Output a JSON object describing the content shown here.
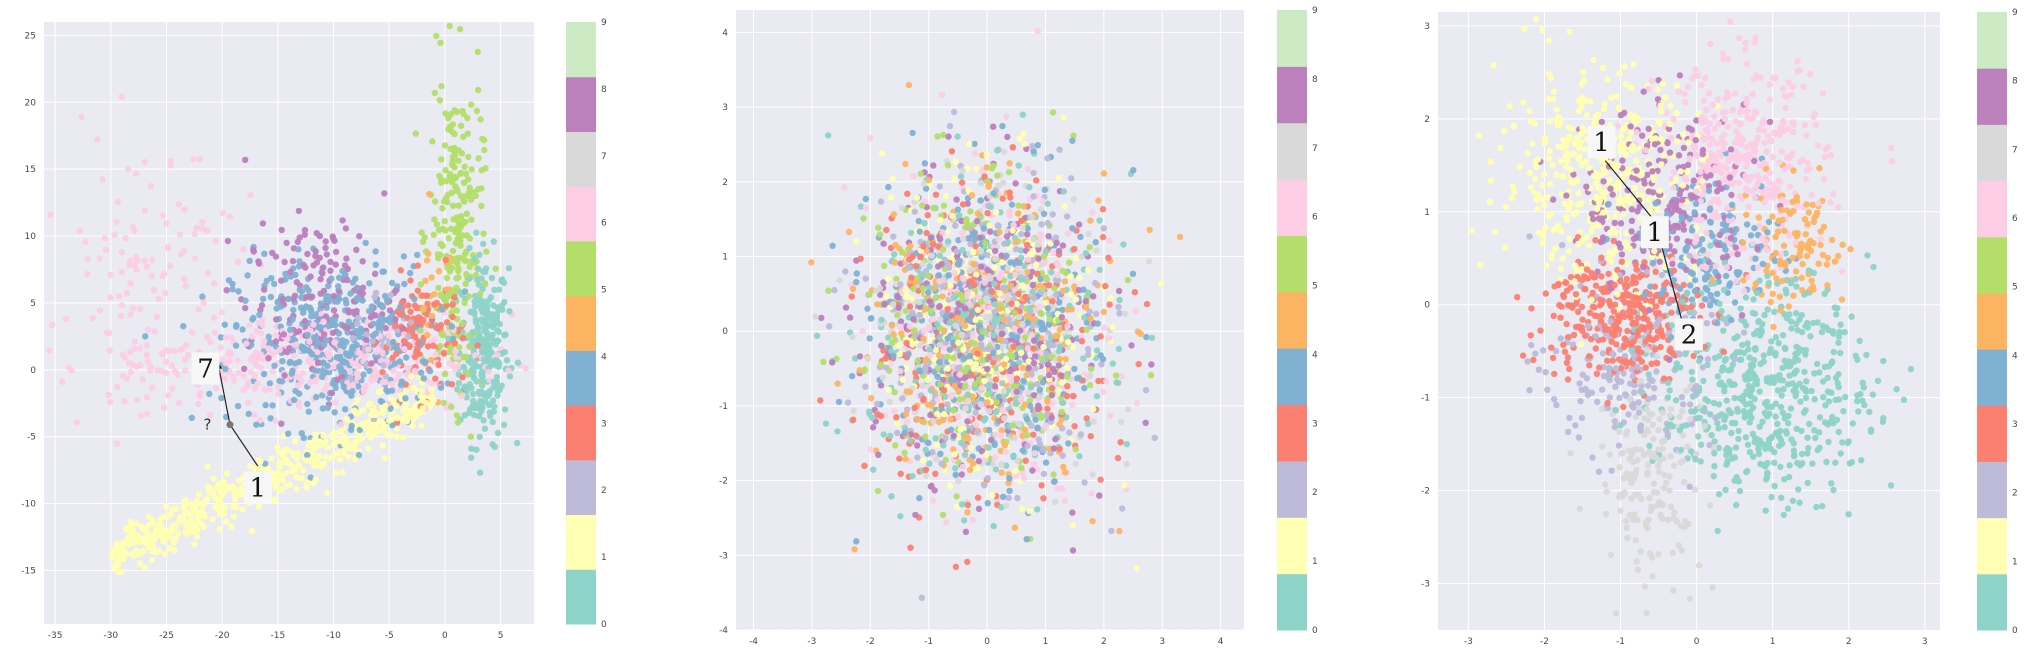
{
  "palette": [
    "#8dd3c7",
    "#ffffb3",
    "#bebada",
    "#fb8072",
    "#80b1d3",
    "#fdb462",
    "#b3de69",
    "#fccde5",
    "#d9d9d9",
    "#bc80bd",
    "#ccebc5",
    "#ffed6f"
  ],
  "class_colors": [
    "#8dd3c7",
    "#ffffb3",
    "#bebada",
    "#fb8072",
    "#80b1d3",
    "#fdb462",
    "#b3de69",
    "#fccde5",
    "#d9d9d9",
    "#bc80bd",
    "#ffed6f"
  ],
  "plot_background": "#eaeaf2",
  "colorbar_labels": [
    "0",
    "1",
    "2",
    "3",
    "4",
    "5",
    "6",
    "7",
    "8",
    "9"
  ],
  "chart_data": [
    {
      "type": "scatter",
      "title": "",
      "xlabel": "",
      "ylabel": "",
      "xlim": [
        -36,
        8
      ],
      "ylim": [
        -19,
        26
      ],
      "xticks": [
        "-35",
        "-30",
        "-25",
        "-20",
        "-15",
        "-10",
        "-5",
        "0",
        "5"
      ],
      "yticks": [
        "-15",
        "-10",
        "-5",
        "0",
        "5",
        "10",
        "15",
        "20",
        "25"
      ],
      "grid": true,
      "colorbar": {
        "ticks": [
          "0",
          "1",
          "2",
          "3",
          "4",
          "5",
          "6",
          "7",
          "8",
          "9"
        ],
        "colors_by_class": true
      },
      "clusters": [
        {
          "label": "0",
          "center": [
            3.5,
            1.5
          ],
          "spread": [
            1.1,
            3.5
          ],
          "count": 260,
          "shape": "vertical"
        },
        {
          "label": "1",
          "from": [
            -30,
            -14
          ],
          "to": [
            -1,
            -2
          ],
          "width": 1.8,
          "count": 520,
          "shape": "line"
        },
        {
          "label": "2",
          "center": [
            -6,
            2
          ],
          "spread": [
            2.0,
            2.0
          ],
          "count": 40
        },
        {
          "label": "4",
          "center": [
            -10,
            2
          ],
          "spread": [
            4.5,
            3.2
          ],
          "count": 420
        },
        {
          "label": "3",
          "center": [
            -2,
            2.5
          ],
          "spread": [
            1.8,
            2.2
          ],
          "count": 120
        },
        {
          "label": "5",
          "center": [
            -1,
            5
          ],
          "spread": [
            1.0,
            3.0
          ],
          "count": 30
        },
        {
          "label": "6",
          "center": [
            1,
            10
          ],
          "spread": [
            1.2,
            6.0
          ],
          "count": 240,
          "shape": "vertical"
        },
        {
          "label": "7",
          "center": [
            -12,
            0.5
          ],
          "spread": [
            9.0,
            1.8
          ],
          "count": 360
        },
        {
          "label": "7",
          "center": [
            -27,
            8
          ],
          "spread": [
            4.0,
            5.0
          ],
          "count": 110
        },
        {
          "label": "9",
          "center": [
            -11,
            5
          ],
          "spread": [
            3.5,
            3.0
          ],
          "count": 180
        }
      ],
      "annotations": [
        {
          "text": "7",
          "x": -21.5,
          "y": 0.1,
          "kind": "digit"
        },
        {
          "text": "?",
          "x": -20.6,
          "y": -4.1,
          "kind": "question"
        },
        {
          "text": "1",
          "x": -16.8,
          "y": -8.8,
          "kind": "digit"
        }
      ],
      "path": [
        [
          -16.8,
          -7.2
        ],
        [
          -19.3,
          -4.1
        ],
        [
          -20.4,
          0.6
        ]
      ]
    },
    {
      "type": "scatter",
      "title": "",
      "xlabel": "",
      "ylabel": "",
      "xlim": [
        -4.3,
        4.4
      ],
      "ylim": [
        -4,
        4.3
      ],
      "xticks": [
        "-4",
        "-3",
        "-2",
        "-1",
        "0",
        "1",
        "2",
        "3",
        "4"
      ],
      "yticks": [
        "-4",
        "-3",
        "-2",
        "-1",
        "0",
        "1",
        "2",
        "3",
        "4"
      ],
      "grid": true,
      "colorbar": {
        "ticks": [
          "0",
          "1",
          "2",
          "3",
          "4",
          "5",
          "6",
          "7",
          "8",
          "9"
        ],
        "colors_by_class": true
      },
      "clusters": [
        {
          "label": "mixed-all-classes",
          "center": [
            0,
            0
          ],
          "spread": [
            1.0,
            1.05
          ],
          "count": 2600,
          "shape": "gaussian-all-classes"
        }
      ]
    },
    {
      "type": "scatter",
      "title": "",
      "xlabel": "",
      "ylabel": "",
      "xlim": [
        -3.4,
        3.2
      ],
      "ylim": [
        -3.5,
        3.15
      ],
      "xticks": [
        "-3",
        "-2",
        "-1",
        "0",
        "1",
        "2",
        "3"
      ],
      "yticks": [
        "-3",
        "-2",
        "-1",
        "0",
        "1",
        "2",
        "3"
      ],
      "grid": true,
      "colorbar": {
        "ticks": [
          "0",
          "1",
          "2",
          "3",
          "4",
          "5",
          "6",
          "7",
          "8",
          "9"
        ],
        "colors_by_class": true
      },
      "clusters": [
        {
          "label": "1",
          "center": [
            -1.3,
            1.4
          ],
          "spread": [
            0.65,
            0.55
          ],
          "count": 420
        },
        {
          "label": "9",
          "center": [
            -0.4,
            1.1
          ],
          "spread": [
            0.55,
            0.5
          ],
          "count": 230
        },
        {
          "label": "7",
          "center": [
            0.6,
            1.5
          ],
          "spread": [
            0.55,
            0.55
          ],
          "count": 380
        },
        {
          "label": "4",
          "center": [
            0.2,
            0.6
          ],
          "spread": [
            0.45,
            0.4
          ],
          "count": 160
        },
        {
          "label": "5",
          "center": [
            1.3,
            0.6
          ],
          "spread": [
            0.35,
            0.35
          ],
          "count": 110
        },
        {
          "label": "3",
          "center": [
            -1.0,
            -0.1
          ],
          "spread": [
            0.5,
            0.35
          ],
          "count": 330
        },
        {
          "label": "2",
          "center": [
            -0.9,
            -0.7
          ],
          "spread": [
            0.55,
            0.45
          ],
          "count": 180
        },
        {
          "label": "8",
          "center": [
            -0.6,
            -1.8
          ],
          "spread": [
            0.35,
            0.55
          ],
          "count": 170
        },
        {
          "label": "0",
          "center": [
            0.9,
            -0.9
          ],
          "spread": [
            0.7,
            0.6
          ],
          "count": 520
        }
      ],
      "annotations": [
        {
          "text": "1",
          "x": -1.25,
          "y": 1.75,
          "kind": "digit"
        },
        {
          "text": "1",
          "x": -0.55,
          "y": 0.78,
          "kind": "digit"
        },
        {
          "text": "2",
          "x": -0.1,
          "y": -0.32,
          "kind": "digit"
        }
      ],
      "path": [
        [
          -1.2,
          1.55
        ],
        [
          -0.6,
          0.95
        ],
        [
          -0.45,
          0.6
        ],
        [
          -0.2,
          -0.15
        ]
      ]
    }
  ]
}
